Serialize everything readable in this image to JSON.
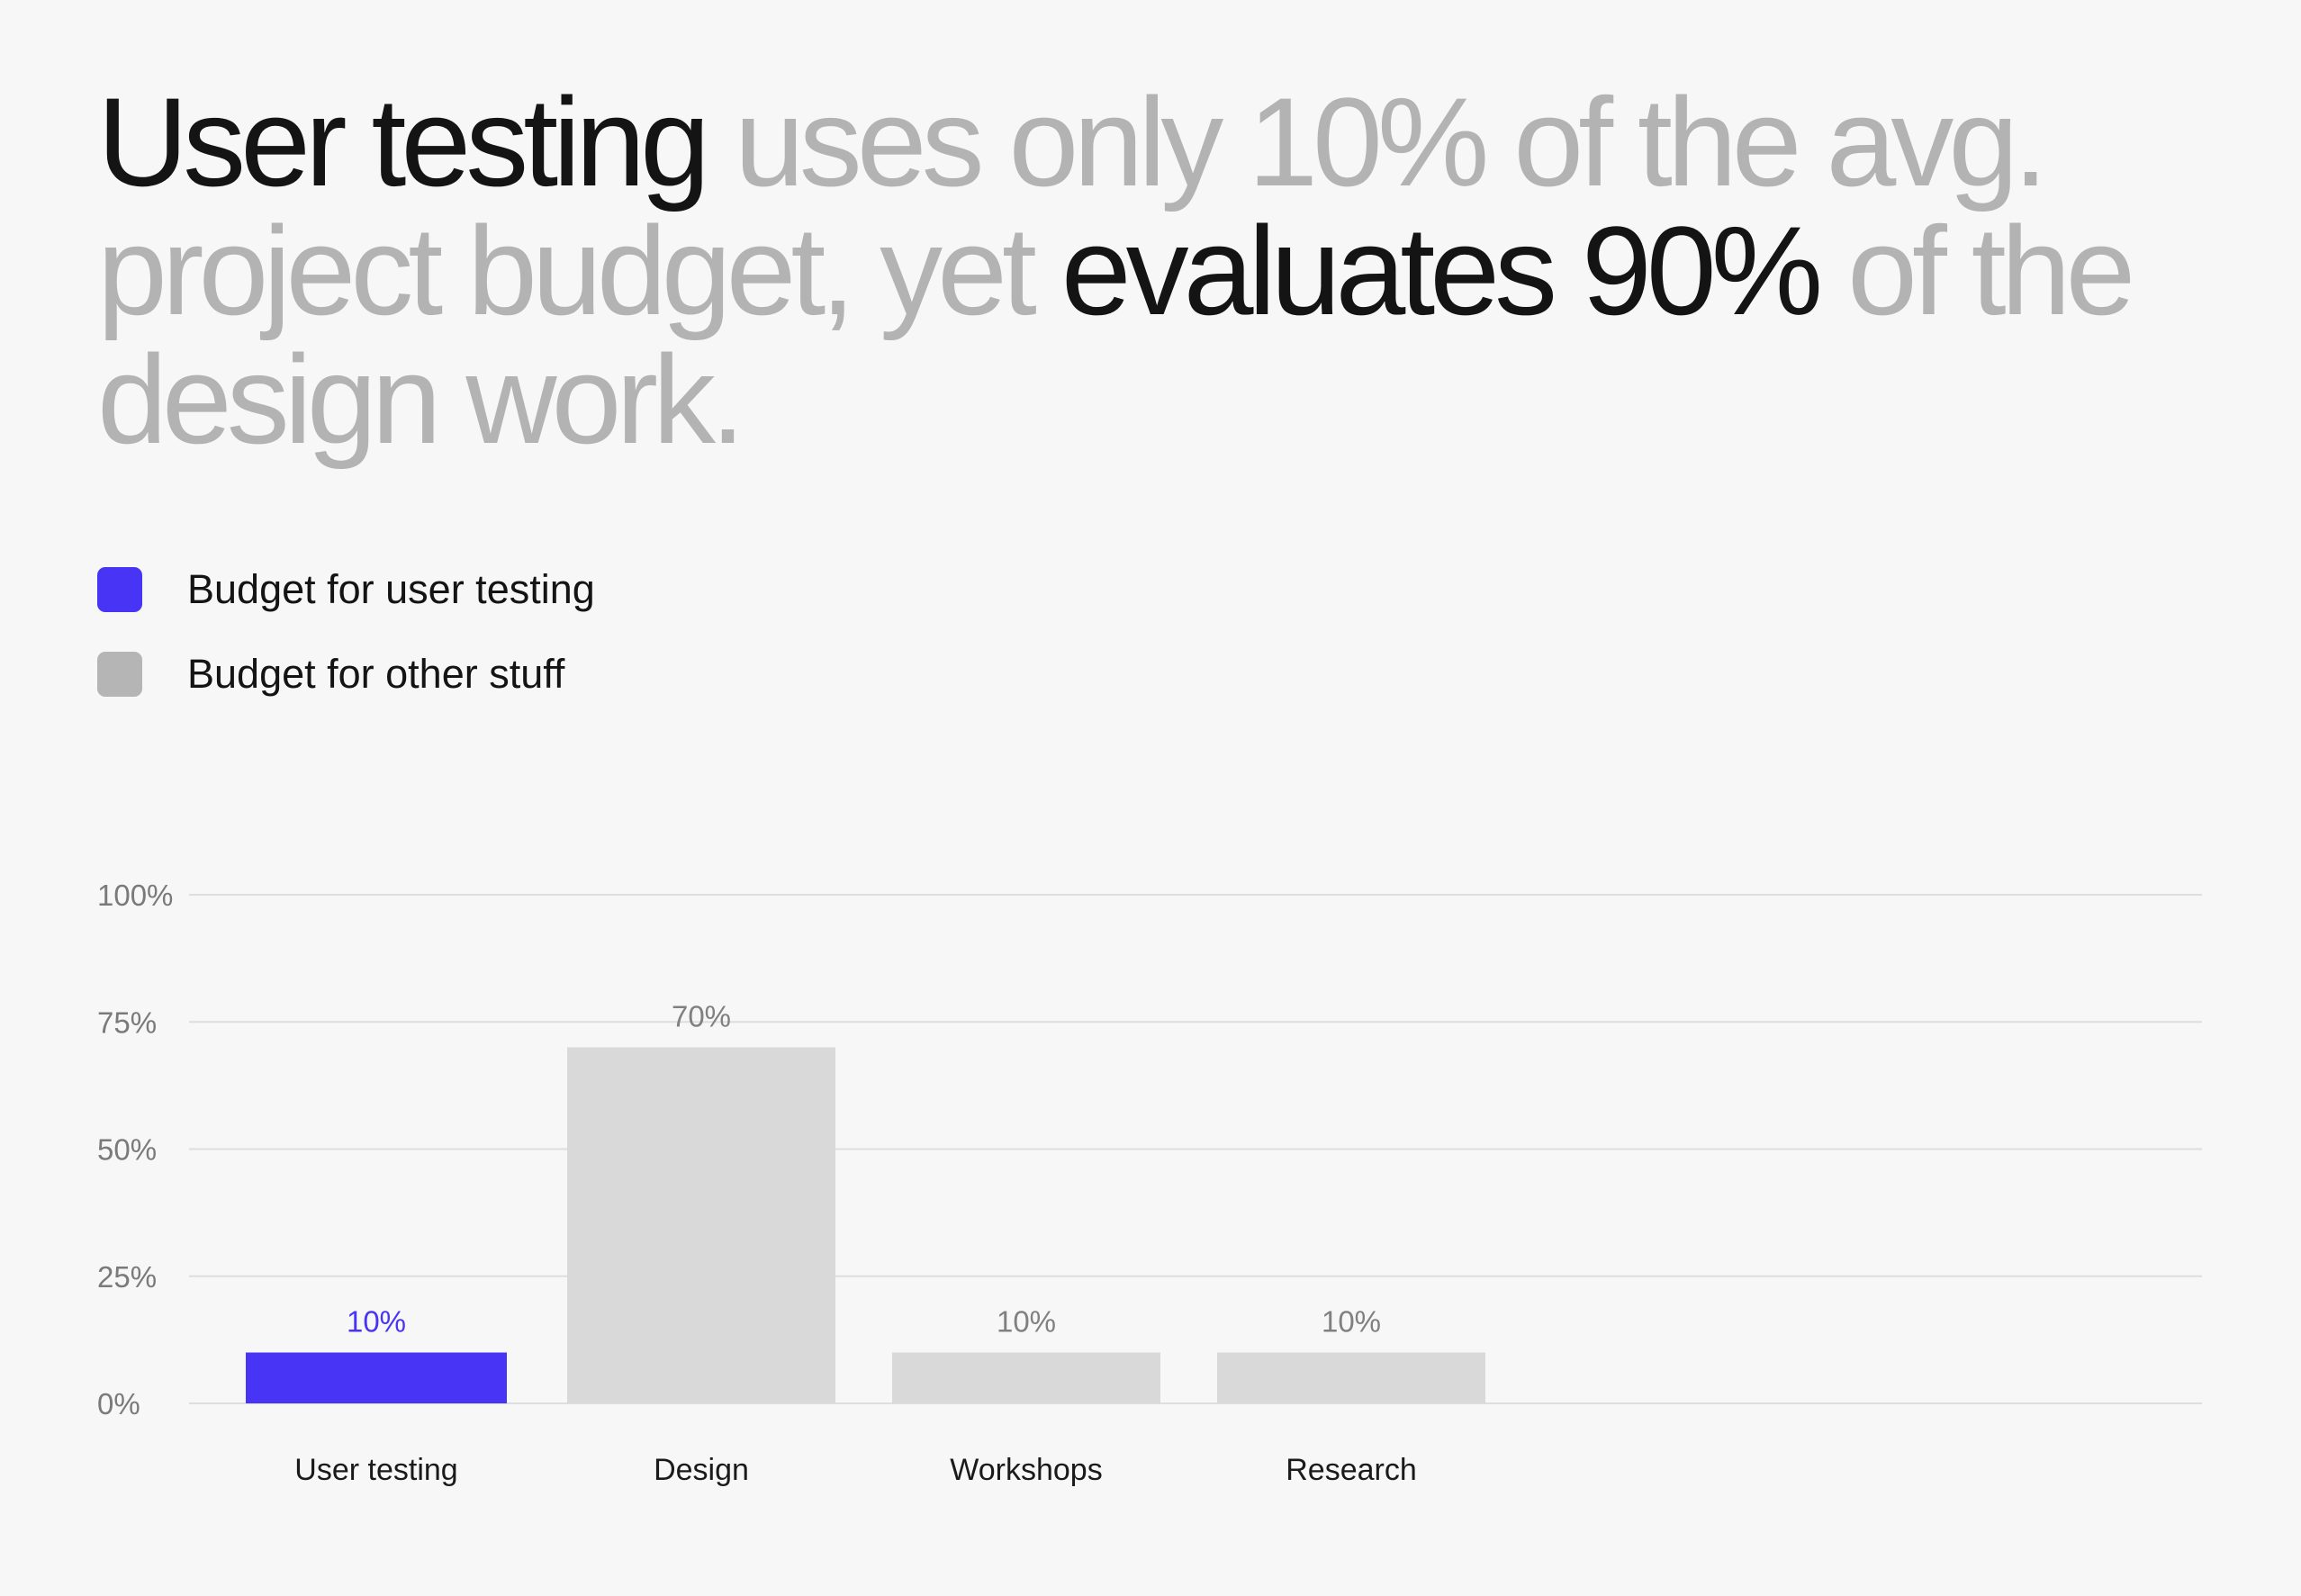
{
  "headline": {
    "parts": [
      {
        "text": "User testing",
        "emphasis": true
      },
      {
        "text": " uses only 10% of the avg. project budget, yet ",
        "emphasis": false
      },
      {
        "text": "evaluates 90%",
        "emphasis": true
      },
      {
        "text": " of the design work.",
        "emphasis": false
      }
    ]
  },
  "legend": [
    {
      "label": "Budget for user testing",
      "color": "#4834f5"
    },
    {
      "label": "Budget for other stuff",
      "color": "#b5b5b5"
    }
  ],
  "chart_data": {
    "type": "bar",
    "categories": [
      "User testing",
      "Design",
      "Workshops",
      "Research"
    ],
    "values": [
      10,
      70,
      10,
      10
    ],
    "value_labels": [
      "10%",
      "70%",
      "10%",
      "10%"
    ],
    "highlight_index": 0,
    "colors": {
      "highlight": "#4834f5",
      "other": "#d9d9d9",
      "grid": "#dedede",
      "label_other": "#808080",
      "tick": "#7a7a7a",
      "category": "#1a1a1a"
    },
    "yticks": [
      0,
      25,
      50,
      75,
      100
    ],
    "ytick_labels": [
      "0%",
      "25%",
      "50%",
      "75%",
      "100%"
    ],
    "ylim": [
      0,
      100
    ],
    "grid": true
  }
}
